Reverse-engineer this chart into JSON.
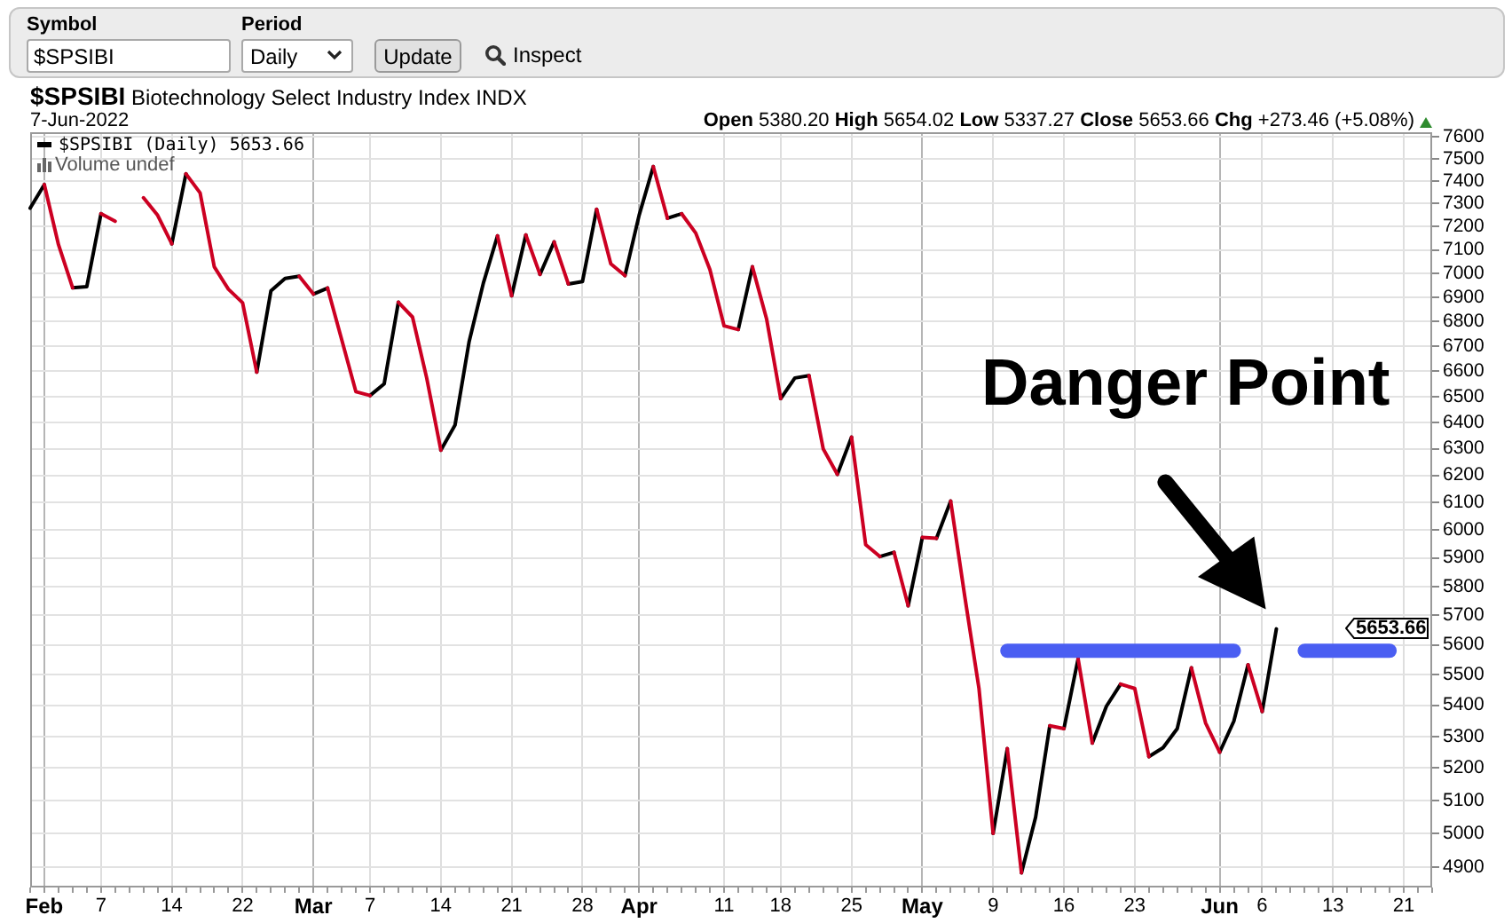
{
  "chart_data": {
    "type": "line",
    "title": "$SPSIBI Biotechnology Select Industry Index INDX",
    "subtitle": "7-Jun-2022",
    "annotations": [
      "Symbol",
      "$SPSIBI",
      "Period",
      "Daily",
      "Update",
      "Inspect",
      "Open 5380.20 High 5654.02 Low 5337.27 Close 5653.66 Chg +273.46 (+5.08%)",
      "Volume undef",
      "Danger Point",
      "5653.66"
    ],
    "categories": [
      null,
      "Feb",
      null,
      null,
      null,
      "7",
      null,
      null,
      null,
      null,
      "14",
      null,
      null,
      null,
      null,
      "22",
      null,
      null,
      null,
      null,
      "Mar",
      null,
      null,
      null,
      "7",
      null,
      null,
      null,
      null,
      "14",
      null,
      null,
      null,
      null,
      "21",
      null,
      null,
      null,
      null,
      "28",
      null,
      null,
      null,
      "Apr",
      null,
      null,
      null,
      null,
      null,
      "11",
      null,
      null,
      null,
      "18",
      null,
      null,
      null,
      null,
      "25",
      null,
      null,
      null,
      null,
      "May",
      null,
      null,
      null,
      null,
      "9",
      null,
      null,
      null,
      null,
      "16",
      null,
      null,
      null,
      null,
      "23",
      null,
      null,
      null,
      null,
      null,
      "Jun",
      null,
      null,
      "6",
      null,
      null,
      null,
      null,
      "13",
      null,
      null,
      null,
      null,
      "21",
      null,
      null
    ],
    "series": [
      {
        "name": "$SPSIBI (Daily) 5653.66",
        "color": "#000000",
        "values": [
          7280,
          7384,
          null,
          null,
          null,
          null,
          null,
          null,
          null,
          null,
          7126,
          7432,
          null,
          null,
          null,
          null,
          null,
          null,
          null,
          null,
          6914,
          6939,
          null,
          null,
          null,
          null,
          null,
          null,
          null,
          6295,
          6390,
          6720,
          6959,
          7160,
          null,
          null,
          6996,
          7134,
          null,
          null,
          null,
          null,
          6991,
          7249,
          7464,
          null,
          null,
          null,
          null,
          null,
          6768,
          7028,
          null,
          null,
          null,
          null,
          null,
          6204,
          6344,
          null,
          null,
          null,
          5733,
          5973,
          null,
          null,
          null,
          null,
          5000,
          5261,
          null,
          null,
          null,
          5325,
          5553,
          null,
          null,
          null,
          null,
          5236,
          5264,
          5325,
          5523,
          null,
          null,
          null,
          null,
          5380,
          5653.66,
          null,
          null,
          null,
          null,
          null,
          null,
          null,
          null,
          null,
          null,
          null
        ]
      },
      {
        "color": "#000000",
        "values": [
          null,
          null,
          null,
          6940,
          6945,
          7256,
          null,
          null,
          null,
          null,
          null,
          null,
          null,
          null,
          null,
          null,
          6597,
          6927,
          6979,
          6988,
          null,
          null,
          null,
          null,
          6505,
          6551,
          6880,
          null,
          null,
          null,
          null,
          null,
          null,
          null,
          6907,
          7164,
          null,
          null,
          6956,
          6966,
          7275,
          null,
          null,
          null,
          null,
          7236,
          7256,
          null,
          null,
          null,
          null,
          null,
          null,
          6493,
          6574,
          6583,
          null,
          null,
          null,
          null,
          5905,
          5920,
          null,
          null,
          5970,
          6105,
          null,
          null,
          null,
          null,
          4883,
          5049,
          5334,
          null,
          null,
          5279,
          5397,
          5469,
          null,
          null,
          null,
          null,
          null,
          null,
          5250,
          5349,
          5533,
          null,
          null,
          null,
          null,
          null,
          null,
          null,
          null,
          null,
          null,
          null,
          null,
          null
        ]
      },
      {
        "color": "#cc0022",
        "values": [
          null,
          7384,
          7122,
          6940,
          null,
          null,
          null,
          null,
          7326,
          7249,
          7126,
          null,
          null,
          null,
          null,
          null,
          null,
          null,
          null,
          6988,
          6914,
          null,
          null,
          null,
          null,
          null,
          6880,
          6819,
          6574,
          6295,
          null,
          null,
          null,
          null,
          null,
          7164,
          6996,
          null,
          null,
          null,
          7275,
          7041,
          6991,
          null,
          null,
          null,
          7256,
          7172,
          7016,
          6783,
          6768,
          null,
          null,
          null,
          null,
          6583,
          6300,
          6204,
          null,
          null,
          null,
          5920,
          5733,
          null,
          null,
          6105,
          5764,
          5455,
          5000,
          null,
          null,
          null,
          5334,
          5325,
          null,
          null,
          null,
          5469,
          5455,
          5236,
          null,
          null,
          null,
          null,
          null,
          null,
          5533,
          5380,
          null,
          null,
          null,
          null,
          null,
          null,
          null,
          null,
          null,
          null,
          null,
          null
        ]
      },
      {
        "color": "#cc0022",
        "values": [
          null,
          null,
          null,
          null,
          null,
          7256,
          7223,
          null,
          null,
          null,
          null,
          7432,
          7347,
          7028,
          6934,
          6878,
          6597,
          null,
          null,
          null,
          null,
          6939,
          6727,
          6520,
          6505,
          null,
          null,
          null,
          null,
          null,
          null,
          null,
          null,
          7160,
          6907,
          null,
          null,
          7134,
          6956,
          null,
          null,
          null,
          null,
          null,
          7464,
          7236,
          null,
          null,
          null,
          null,
          null,
          7028,
          6812,
          6493,
          null,
          null,
          null,
          null,
          6344,
          5947,
          5905,
          null,
          null,
          5973,
          5970,
          null,
          null,
          null,
          null,
          5261,
          4883,
          null,
          null,
          null,
          5553,
          5279,
          null,
          null,
          null,
          null,
          null,
          null,
          5523,
          5343,
          5250,
          null,
          null,
          null,
          null,
          null,
          null,
          null,
          null,
          null,
          null,
          null,
          null,
          null,
          null,
          null
        ]
      },
      {
        "color": "#4a5ef2",
        "values": [
          null,
          null,
          null,
          null,
          null,
          null,
          null,
          null,
          null,
          null,
          null,
          null,
          null,
          null,
          null,
          null,
          null,
          null,
          null,
          null,
          null,
          null,
          null,
          null,
          null,
          null,
          null,
          null,
          null,
          null,
          null,
          null,
          null,
          null,
          null,
          null,
          null,
          null,
          null,
          null,
          null,
          null,
          null,
          null,
          null,
          null,
          null,
          null,
          null,
          null,
          null,
          null,
          null,
          null,
          null,
          null,
          null,
          null,
          null,
          null,
          null,
          null,
          null,
          null,
          null,
          null,
          null,
          null,
          null,
          5580,
          5580,
          5580,
          5580,
          5580,
          5580,
          5580,
          5580,
          5580,
          5580,
          5580,
          5580,
          5580,
          5580,
          5580,
          5580,
          5580,
          null,
          null,
          null,
          null,
          5580,
          5580,
          5580,
          5580,
          5580,
          5580,
          5580,
          null,
          null,
          null
        ]
      }
    ],
    "ylim": [
      4840,
      7620
    ],
    "yticks": [
      4900,
      5000,
      5100,
      5200,
      5300,
      5400,
      5500,
      5600,
      5700,
      5800,
      5900,
      6000,
      6100,
      6200,
      6300,
      6400,
      6500,
      6600,
      6700,
      6800,
      6900,
      7000,
      7100,
      7200,
      7300,
      7400,
      7500,
      7600
    ],
    "log": true,
    "grid": true,
    "legend": "top left",
    "marker": "none"
  }
}
